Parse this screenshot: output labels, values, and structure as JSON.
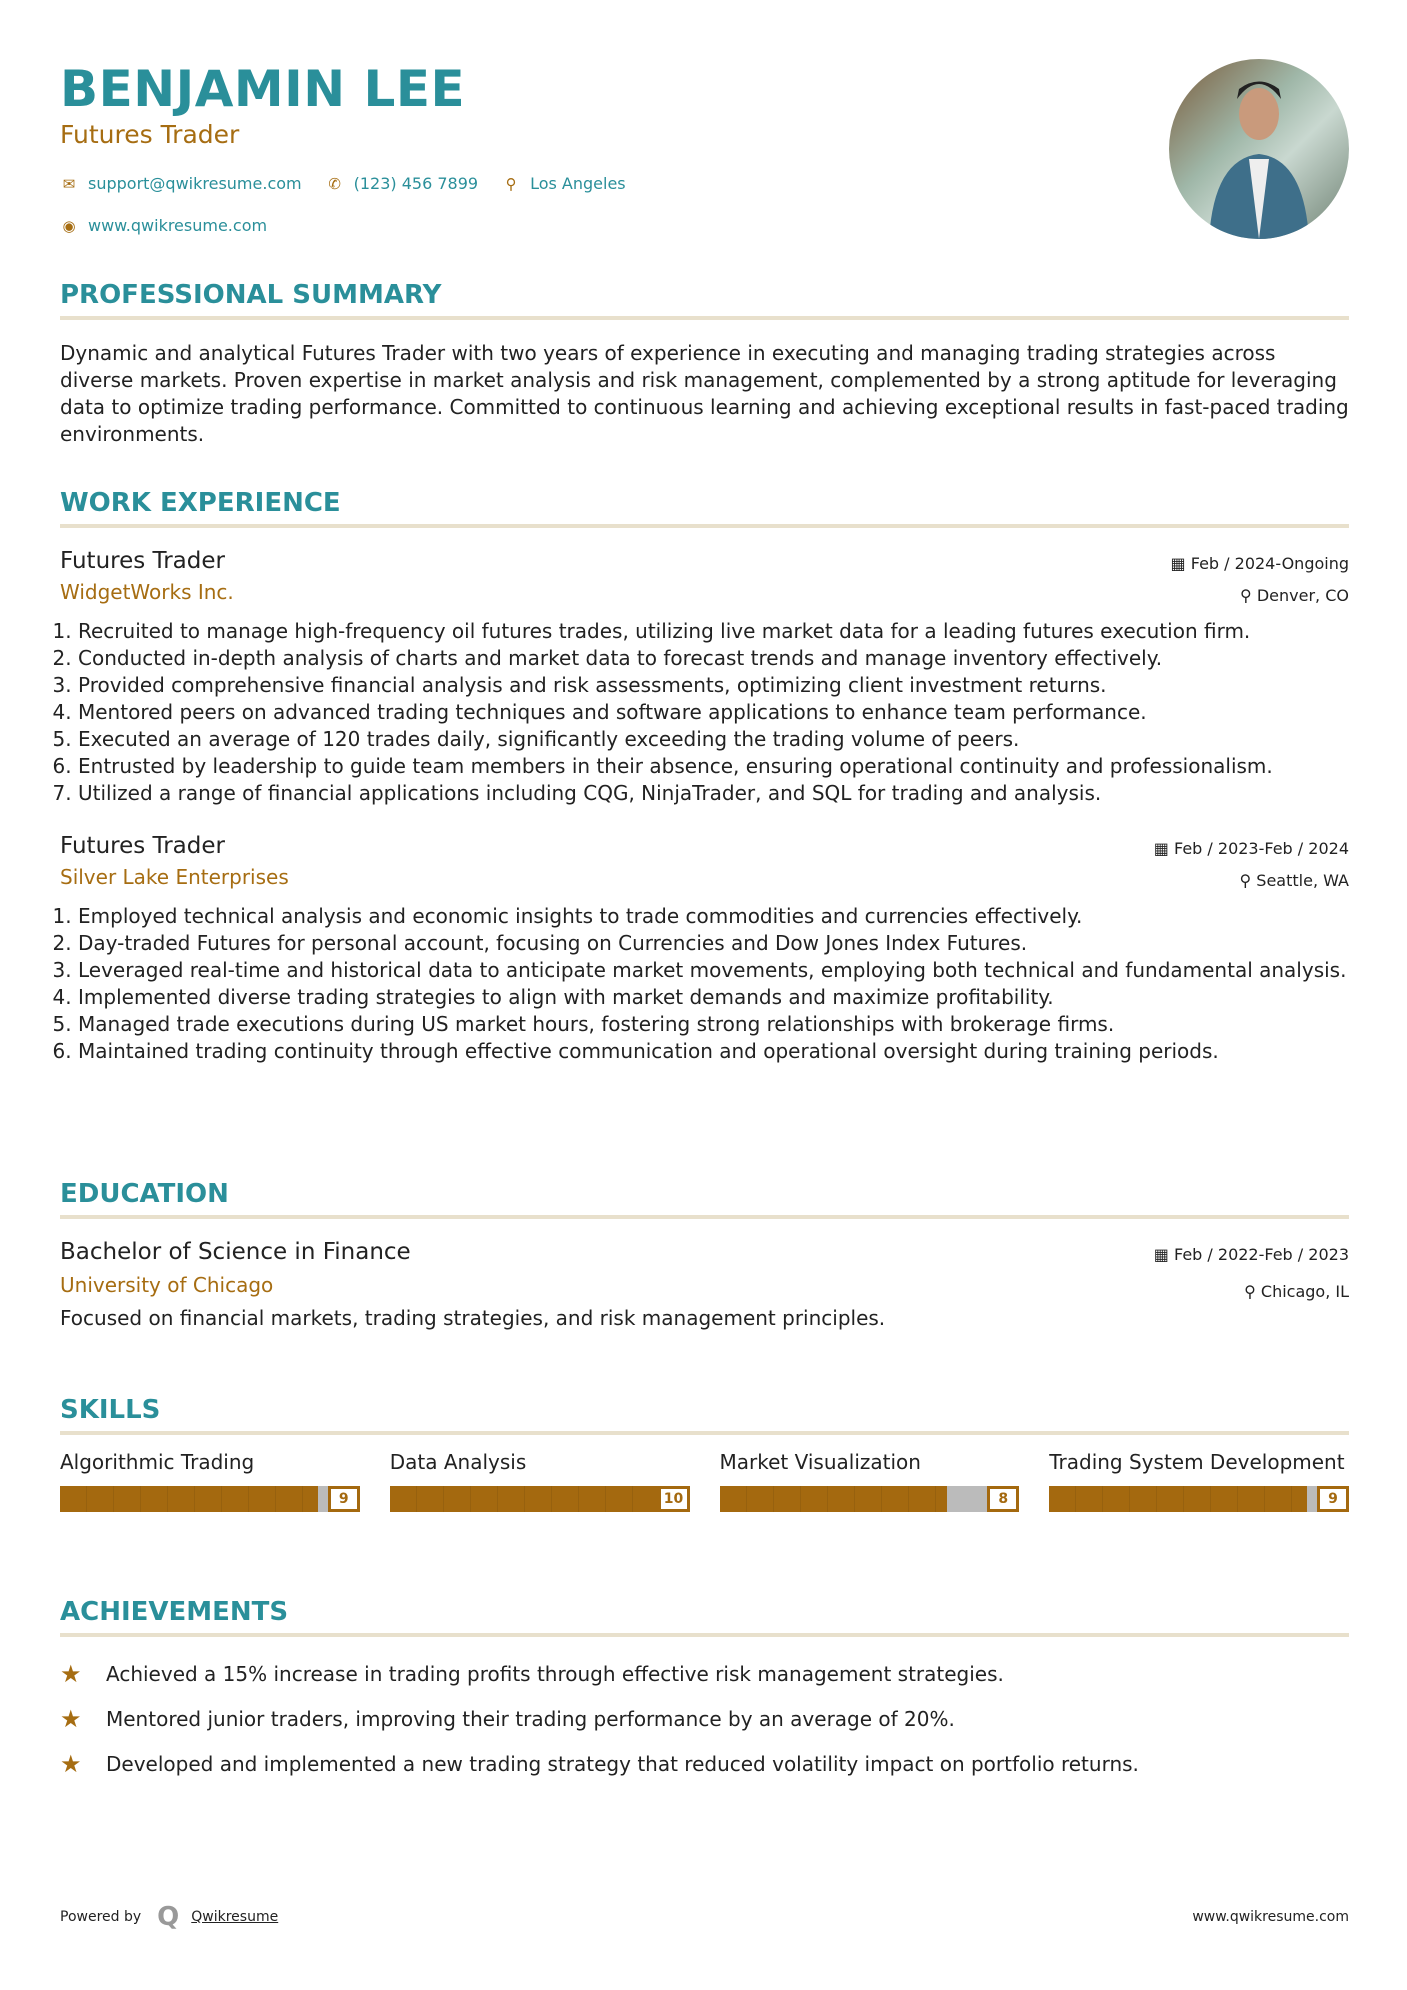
{
  "header": {
    "name": "BENJAMIN LEE",
    "title": "Futures Trader",
    "email": "support@qwikresume.com",
    "phone": "(123) 456 7899",
    "location": "Los Angeles",
    "website": "www.qwikresume.com"
  },
  "colors": {
    "accent": "#2a8f9a",
    "secondary": "#a66d12",
    "rule": "#e8e0cc"
  },
  "summary": {
    "heading": "PROFESSIONAL SUMMARY",
    "text": "Dynamic and analytical Futures Trader with two years of experience in executing and managing trading strategies across diverse markets. Proven expertise in market analysis and risk management, complemented by a strong aptitude for leveraging data to optimize trading performance. Committed to continuous learning and achieving exceptional results in fast-paced trading environments."
  },
  "experience": {
    "heading": "WORK EXPERIENCE",
    "jobs": [
      {
        "title": "Futures Trader",
        "company": "WidgetWorks Inc.",
        "dates": "Feb / 2024-Ongoing",
        "location": "Denver, CO",
        "bullets": [
          "Recruited to manage high-frequency oil futures trades, utilizing live market data for a leading futures execution firm.",
          "Conducted in-depth analysis of charts and market data to forecast trends and manage inventory effectively.",
          "Provided comprehensive financial analysis and risk assessments, optimizing client investment returns.",
          "Mentored peers on advanced trading techniques and software applications to enhance team performance.",
          "Executed an average of 120 trades daily, significantly exceeding the trading volume of peers.",
          "Entrusted by leadership to guide team members in their absence, ensuring operational continuity and professionalism.",
          "Utilized a range of financial applications including CQG, NinjaTrader, and SQL for trading and analysis."
        ]
      },
      {
        "title": "Futures Trader",
        "company": "Silver Lake Enterprises",
        "dates": "Feb / 2023-Feb / 2024",
        "location": "Seattle, WA",
        "bullets": [
          "Employed technical analysis and economic insights to trade commodities and currencies effectively.",
          "Day-traded Futures for personal account, focusing on Currencies and Dow Jones Index Futures.",
          "Leveraged real-time and historical data to anticipate market movements, employing both technical and fundamental analysis.",
          "Implemented diverse trading strategies to align with market demands and maximize profitability.",
          "Managed trade executions during US market hours, fostering strong relationships with brokerage firms.",
          "Maintained trading continuity through effective communication and operational oversight during training periods."
        ]
      }
    ]
  },
  "education": {
    "heading": "EDUCATION",
    "degree": "Bachelor of Science in Finance",
    "school": "University of Chicago",
    "dates": "Feb / 2022-Feb / 2023",
    "location": "Chicago, IL",
    "description": "Focused on financial markets, trading strategies, and risk management principles."
  },
  "skills": {
    "heading": "SKILLS",
    "items": [
      {
        "name": "Algorithmic Trading",
        "level": 9
      },
      {
        "name": "Data Analysis",
        "level": 10
      },
      {
        "name": "Market Visualization",
        "level": 8
      },
      {
        "name": "Trading System Development",
        "level": 9
      }
    ]
  },
  "achievements": {
    "heading": "ACHIEVEMENTS",
    "items": [
      "Achieved a 15% increase in trading profits through effective risk management strategies.",
      "Mentored junior traders, improving their trading performance by an average of 20%.",
      "Developed and implemented a new trading strategy that reduced volatility impact on portfolio returns."
    ]
  },
  "footer": {
    "powered_by": "Powered by",
    "brand": "Qwikresume",
    "website": "www.qwikresume.com"
  }
}
